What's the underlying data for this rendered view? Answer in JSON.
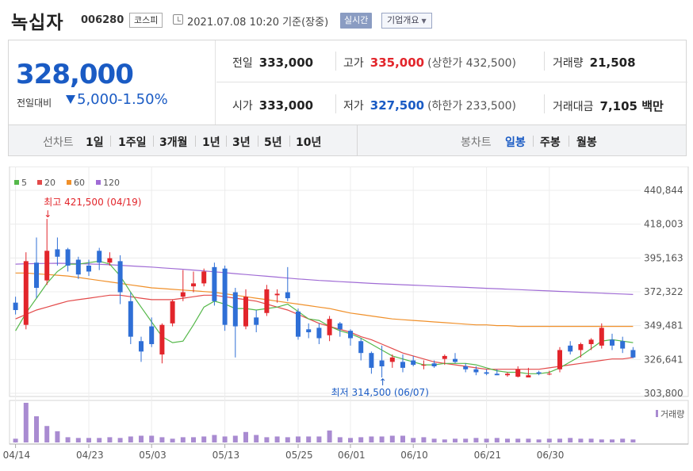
{
  "header": {
    "stock_name": "녹십자",
    "stock_code": "006280",
    "market": "코스피",
    "timestamp": "2021.07.08 10:20 기준(장중)",
    "realtime_label": "실시간",
    "company_info_label": "기업개요"
  },
  "quote": {
    "price": "328,000",
    "change_label": "전일대비",
    "change_value": "5,000",
    "change_pct": "-1.50%",
    "prev_close_label": "전일",
    "prev_close": "333,000",
    "high_label": "고가",
    "high": "335,000",
    "upper_limit": "(상한가 432,500)",
    "volume_label": "거래량",
    "volume": "21,508",
    "open_label": "시가",
    "open": "333,000",
    "low_label": "저가",
    "low": "327,500",
    "lower_limit": "(하한가 233,500)",
    "amount_label": "거래대금",
    "amount": "7,105 백만"
  },
  "periods": {
    "line_chart_label": "선차트",
    "line_items": [
      "1일",
      "1주일",
      "3개월",
      "1년",
      "3년",
      "5년",
      "10년"
    ],
    "candle_chart_label": "봉차트",
    "candle_items": [
      "일봉",
      "주봉",
      "월봉"
    ],
    "active_candle": "일봉"
  },
  "chart_data": {
    "type": "line",
    "legend": [
      "5",
      "20",
      "60",
      "120"
    ],
    "legend_colors": [
      "#55b84a",
      "#e34a4a",
      "#f0902a",
      "#a06cd5"
    ],
    "up_color": "#e2252b",
    "down_color": "#2f6fd6",
    "y_ticks": [
      "440,844",
      "418,003",
      "395,163",
      "372,322",
      "349,481",
      "326,641",
      "303,800"
    ],
    "y_tick_values": [
      440844,
      418003,
      395163,
      372322,
      349481,
      326641,
      303800
    ],
    "x_tick_labels": [
      "04/14",
      "04/23",
      "05/03",
      "05/13",
      "05/25",
      "06/01",
      "06/10",
      "06/21",
      "06/30"
    ],
    "x_tick_index": [
      0,
      7,
      13,
      20,
      27,
      32,
      38,
      45,
      51
    ],
    "high_annotation": "최고 421,500 (04/19)",
    "high_index": 3,
    "low_annotation": "최저 314,500 (06/07)",
    "low_index": 35,
    "volume_label": "거래량",
    "candles": [
      [
        365000,
        369000,
        357000,
        360000
      ],
      [
        350000,
        399000,
        347000,
        393000
      ],
      [
        392000,
        409000,
        368000,
        375000
      ],
      [
        380000,
        421500,
        377000,
        400000
      ],
      [
        401000,
        409000,
        390000,
        396000
      ],
      [
        401000,
        402000,
        386000,
        390000
      ],
      [
        394000,
        396000,
        381000,
        384000
      ],
      [
        390000,
        394000,
        383000,
        386000
      ],
      [
        400000,
        402000,
        387000,
        392000
      ],
      [
        392000,
        399000,
        390000,
        395000
      ],
      [
        393000,
        397000,
        364000,
        372000
      ],
      [
        366000,
        372000,
        337000,
        342000
      ],
      [
        339000,
        342000,
        325000,
        332000
      ],
      [
        349000,
        355000,
        335000,
        337000
      ],
      [
        330000,
        351000,
        324000,
        350000
      ],
      [
        351000,
        367000,
        349000,
        366000
      ],
      [
        369000,
        387000,
        366000,
        372000
      ],
      [
        376000,
        386000,
        372000,
        378000
      ],
      [
        378000,
        388000,
        376000,
        386000
      ],
      [
        389000,
        392000,
        363000,
        366000
      ],
      [
        388000,
        390000,
        346000,
        350000
      ],
      [
        372000,
        375000,
        328000,
        349000
      ],
      [
        349000,
        374000,
        347000,
        369000
      ],
      [
        355000,
        360000,
        345000,
        350000
      ],
      [
        358000,
        377000,
        356000,
        374000
      ],
      [
        370000,
        374000,
        365000,
        371000
      ],
      [
        372000,
        389000,
        366000,
        368000
      ],
      [
        359000,
        361000,
        340000,
        342000
      ],
      [
        347000,
        351000,
        341000,
        345000
      ],
      [
        348000,
        351000,
        337000,
        341000
      ],
      [
        343000,
        356000,
        339000,
        354000
      ],
      [
        351000,
        352000,
        342000,
        347000
      ],
      [
        346000,
        347000,
        336000,
        341000
      ],
      [
        339000,
        341000,
        326000,
        331000
      ],
      [
        331000,
        332000,
        317000,
        321000
      ],
      [
        326000,
        336000,
        314500,
        322000
      ],
      [
        325000,
        330000,
        321000,
        328000
      ],
      [
        325000,
        330000,
        318000,
        321000
      ],
      [
        326000,
        329000,
        322000,
        323000
      ],
      [
        323000,
        326000,
        320000,
        323000
      ],
      [
        324000,
        326000,
        321000,
        322000
      ],
      [
        327000,
        330000,
        323000,
        329000
      ],
      [
        327000,
        331000,
        324000,
        325000
      ],
      [
        322000,
        324000,
        318000,
        320000
      ],
      [
        320000,
        322000,
        316000,
        318000
      ],
      [
        318000,
        320000,
        316000,
        317000
      ],
      [
        317000,
        320000,
        316000,
        316000
      ],
      [
        316000,
        318000,
        315000,
        317000
      ],
      [
        315000,
        322000,
        314500,
        320000
      ],
      [
        314500,
        321000,
        314500,
        316000
      ],
      [
        318000,
        319000,
        316000,
        317000
      ],
      [
        317000,
        319000,
        316000,
        317000
      ],
      [
        320000,
        335000,
        318000,
        333000
      ],
      [
        336000,
        339000,
        330000,
        332000
      ],
      [
        333000,
        338000,
        328000,
        337000
      ],
      [
        337000,
        341000,
        333000,
        340000
      ],
      [
        336000,
        351000,
        334000,
        348000
      ],
      [
        340000,
        344000,
        333000,
        336000
      ],
      [
        339000,
        342000,
        331000,
        334000
      ],
      [
        333000,
        335000,
        327500,
        328000
      ]
    ],
    "ma5": [
      346000,
      358000,
      368000,
      378000,
      386000,
      391000,
      391000,
      392000,
      393000,
      391000,
      383000,
      372000,
      362000,
      352000,
      342000,
      338000,
      339000,
      350000,
      362000,
      366000,
      364000,
      361000,
      361000,
      360000,
      361000,
      362000,
      364000,
      359000,
      354000,
      353000,
      349000,
      346000,
      344000,
      341000,
      337000,
      333000,
      329000,
      327000,
      325000,
      323000,
      323000,
      324000,
      324000,
      324000,
      323000,
      321000,
      319000,
      318000,
      318000,
      317000,
      317000,
      318000,
      321000,
      325000,
      329000,
      334000,
      339000,
      340000,
      339000,
      338000
    ],
    "ma20": [
      354000,
      357000,
      360000,
      362000,
      364000,
      366000,
      367000,
      368000,
      369000,
      370000,
      370000,
      369000,
      368000,
      367000,
      367000,
      367000,
      368000,
      369000,
      370000,
      370000,
      369000,
      368000,
      367000,
      366000,
      364000,
      362000,
      360000,
      357000,
      354000,
      351000,
      349000,
      347000,
      345000,
      342000,
      340000,
      337000,
      334000,
      331000,
      329000,
      327000,
      325000,
      324000,
      323000,
      322000,
      321000,
      320000,
      320000,
      320000,
      320000,
      320000,
      320000,
      321000,
      322000,
      323000,
      324000,
      325000,
      326000,
      327000,
      327000,
      328000
    ],
    "ma60": [
      385000,
      385000,
      384500,
      384000,
      383500,
      383000,
      382000,
      381000,
      380000,
      379000,
      378000,
      377000,
      376000,
      375000,
      374500,
      374000,
      373500,
      373000,
      372500,
      372000,
      371000,
      370000,
      369000,
      368000,
      367000,
      366000,
      365000,
      364000,
      363000,
      362000,
      361000,
      359500,
      358000,
      357000,
      356000,
      355000,
      354000,
      353500,
      353000,
      352500,
      352000,
      351500,
      351000,
      350500,
      350000,
      350000,
      349500,
      349500,
      349000,
      349000,
      349000,
      349000,
      349000,
      349000,
      349000,
      349000,
      349000,
      349000,
      349000,
      349000
    ],
    "ma120": [
      391000,
      391200,
      391400,
      391500,
      391600,
      391500,
      391300,
      391100,
      390900,
      390600,
      390200,
      389800,
      389400,
      389000,
      388500,
      388000,
      387500,
      387000,
      386400,
      385800,
      385200,
      384600,
      384000,
      383400,
      382800,
      382200,
      381600,
      381000,
      380500,
      380000,
      379600,
      379200,
      378800,
      378400,
      378000,
      377700,
      377400,
      377100,
      376800,
      376500,
      376200,
      375900,
      375600,
      375300,
      375000,
      374700,
      374400,
      374100,
      373800,
      373500,
      373200,
      372900,
      372600,
      372300,
      372000,
      371700,
      371400,
      371100,
      370800,
      370500
    ],
    "volumes": [
      5,
      53,
      35,
      22,
      15,
      7,
      6,
      6,
      6,
      7,
      6,
      8,
      9,
      9,
      7,
      5,
      7,
      7,
      8,
      10,
      8,
      9,
      14,
      10,
      7,
      8,
      7,
      8,
      8,
      8,
      16,
      7,
      6,
      7,
      8,
      8,
      9,
      9,
      6,
      7,
      5,
      4,
      5,
      5,
      6,
      5,
      6,
      5,
      5,
      5,
      4,
      5,
      5,
      6,
      5,
      5,
      4,
      4,
      5,
      4
    ]
  }
}
